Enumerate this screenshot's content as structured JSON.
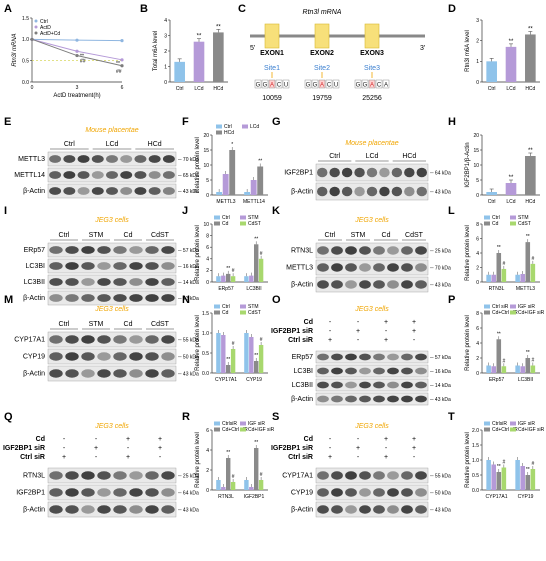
{
  "panels": {
    "A": {
      "letter": "A",
      "ylabel": "Rtn3l mRNA",
      "xlabel": "ActD treatment(h)",
      "legend": [
        "Ctrl",
        "ActD",
        "ActD+Cd"
      ],
      "x": [
        0,
        3,
        6
      ],
      "xticks": [
        "0",
        "3",
        "6"
      ],
      "yticks": [
        "0.0",
        "0.5",
        "1.0",
        "1.5"
      ],
      "ylim": [
        0,
        1.5
      ],
      "series": [
        {
          "name": "Ctrl",
          "values": [
            1.0,
            0.98,
            0.97
          ],
          "color": "#8fb6e0"
        },
        {
          "name": "ActD",
          "values": [
            1.0,
            0.72,
            0.52
          ],
          "color": "#b59ad8"
        },
        {
          "name": "ActD+Cd",
          "values": [
            1.0,
            0.62,
            0.38
          ],
          "color": "#7d7d7d"
        }
      ],
      "marks": [
        "**",
        "##",
        "**",
        "##"
      ]
    },
    "B": {
      "letter": "B",
      "ylabel": "Total m6A level",
      "categories": [
        "Ctrl",
        "LCd",
        "HCd"
      ],
      "values": [
        1.3,
        2.6,
        3.2
      ],
      "colors": [
        "#8fc3ea",
        "#b59ad8",
        "#8a8a8a"
      ],
      "yticks": [
        "0",
        "1",
        "2",
        "3",
        "4"
      ],
      "ylim": [
        0,
        4
      ],
      "marks": [
        "",
        "**",
        "**"
      ]
    },
    "C": {
      "letter": "C",
      "title": "Rtn3l mRNA",
      "five": "5'",
      "three": "3'",
      "exons": [
        "EXON1",
        "EXON2",
        "EXON3"
      ],
      "sites": [
        "Site1",
        "Site2",
        "Site3"
      ],
      "positions": [
        "10059",
        "19759",
        "25256"
      ],
      "seqs": [
        [
          "G",
          "G",
          "A",
          "C",
          "U"
        ],
        [
          "G",
          "G",
          "A",
          "C",
          "U"
        ],
        [
          "G",
          "G",
          "A",
          "C",
          "A"
        ]
      ]
    },
    "D": {
      "letter": "D",
      "ylabel": "Rtn3l m6A level",
      "categories": [
        "Ctrl",
        "LCd",
        "HCd"
      ],
      "values": [
        1.0,
        1.7,
        2.3
      ],
      "colors": [
        "#8fc3ea",
        "#b59ad8",
        "#8a8a8a"
      ],
      "yticks": [
        "0",
        "1",
        "2",
        "3"
      ],
      "ylim": [
        0,
        3
      ],
      "marks": [
        "",
        "**",
        "**"
      ]
    },
    "E": {
      "letter": "E",
      "subtitle": "Mouse placentae",
      "groups": [
        "Ctrl",
        "LCd",
        "HCd"
      ],
      "rows": [
        {
          "name": "METTL3",
          "kda": "70 kDa"
        },
        {
          "name": "METTL14",
          "kda": "65 kDa"
        },
        {
          "name": "β-Actin",
          "kda": "43 kDa"
        }
      ]
    },
    "F": {
      "letter": "F",
      "ylabel": "Relative protein level",
      "legend": [
        "Ctrl",
        "LCd",
        "HCd"
      ],
      "categories": [
        "METTL3",
        "METTL14"
      ],
      "series": [
        {
          "name": "Ctrl",
          "values": [
            1.0,
            1.0
          ],
          "color": "#8fc3ea"
        },
        {
          "name": "LCd",
          "values": [
            7.0,
            5.0
          ],
          "color": "#b59ad8"
        },
        {
          "name": "HCd",
          "values": [
            15.0,
            9.5
          ],
          "color": "#8a8a8a"
        }
      ],
      "yticks": [
        "0",
        "5",
        "10",
        "15",
        "20"
      ],
      "ylim": [
        0,
        20
      ],
      "marks": [
        "*",
        "**",
        "",
        "*"
      ]
    },
    "G": {
      "letter": "G",
      "subtitle": "Mouse placentae",
      "groups": [
        "Ctrl",
        "LCd",
        "HCd"
      ],
      "rows": [
        {
          "name": "IGF2BP1",
          "kda": "64 kDa"
        },
        {
          "name": "β-Actin",
          "kda": "43 kDa"
        }
      ]
    },
    "H": {
      "letter": "H",
      "ylabel": "IGF2BP1/β-Actin",
      "categories": [
        "Ctrl",
        "LCd",
        "HCd"
      ],
      "values": [
        1.0,
        4.0,
        13.0
      ],
      "colors": [
        "#8fc3ea",
        "#b59ad8",
        "#8a8a8a"
      ],
      "yticks": [
        "0",
        "5",
        "10",
        "15",
        "20"
      ],
      "ylim": [
        0,
        20
      ],
      "marks": [
        "",
        "**",
        "**"
      ]
    },
    "I": {
      "letter": "I",
      "subtitle": "JEG3 cells",
      "groups": [
        "Ctrl",
        "STM",
        "Cd",
        "CdST"
      ],
      "rows": [
        {
          "name": "ERp57",
          "kda": "57 kDa"
        },
        {
          "name": "LC3BI",
          "kda": "16 kDa"
        },
        {
          "name": "LC3BII",
          "kda": "14 kDa"
        },
        {
          "name": "β-Actin",
          "kda": "43 kDa"
        }
      ]
    },
    "J": {
      "letter": "J",
      "ylabel": "Relative protein level",
      "legend": [
        "Ctrl",
        "STM",
        "Cd",
        "CdST"
      ],
      "categories": [
        "ERp57",
        "LC3BII"
      ],
      "series": [
        {
          "name": "Ctrl",
          "values": [
            1.0,
            1.0
          ],
          "color": "#8fc3ea"
        },
        {
          "name": "STM",
          "values": [
            1.1,
            1.1
          ],
          "color": "#b59ad8"
        },
        {
          "name": "Cd",
          "values": [
            1.4,
            6.5
          ],
          "color": "#8a8a8a"
        },
        {
          "name": "CdST",
          "values": [
            1.0,
            4.0
          ],
          "color": "#a8d86e"
        }
      ],
      "yticks": [
        "0",
        "2",
        "4",
        "6",
        "8",
        "10"
      ],
      "ylim": [
        0,
        10
      ],
      "marks": [
        "**",
        "#",
        "**",
        "#"
      ]
    },
    "K": {
      "letter": "K",
      "subtitle": "JEG3 cells",
      "groups": [
        "Ctrl",
        "STM",
        "Cd",
        "CdST"
      ],
      "rows": [
        {
          "name": "RTN3L",
          "kda": "25 kDa"
        },
        {
          "name": "METTL3",
          "kda": "70 kDa"
        },
        {
          "name": "β-Actin",
          "kda": "43 kDa"
        }
      ]
    },
    "L": {
      "letter": "L",
      "ylabel": "Relative protein level",
      "legend": [
        "Ctrl",
        "STM",
        "Cd",
        "CdST"
      ],
      "categories": [
        "RTN3L",
        "METTL3"
      ],
      "series": [
        {
          "name": "Ctrl",
          "values": [
            1.0,
            1.0
          ],
          "color": "#8fc3ea"
        },
        {
          "name": "STM",
          "values": [
            1.0,
            1.1
          ],
          "color": "#b59ad8"
        },
        {
          "name": "Cd",
          "values": [
            4.0,
            5.5
          ],
          "color": "#8a8a8a"
        },
        {
          "name": "CdST",
          "values": [
            1.8,
            2.5
          ],
          "color": "#a8d86e"
        }
      ],
      "yticks": [
        "0",
        "2",
        "4",
        "6",
        "8"
      ],
      "ylim": [
        0,
        8
      ],
      "marks": [
        "**",
        "#",
        "**",
        "#"
      ]
    },
    "M": {
      "letter": "M",
      "subtitle": "JEG3 cells",
      "groups": [
        "Ctrl",
        "STM",
        "Cd",
        "CdST"
      ],
      "rows": [
        {
          "name": "CYP17A1",
          "kda": "55 kDa"
        },
        {
          "name": "CYP19",
          "kda": "50 kDa"
        },
        {
          "name": "β-Actin",
          "kda": "43 kDa"
        }
      ]
    },
    "N": {
      "letter": "N",
      "ylabel": "Relative protein level",
      "legend": [
        "Ctrl",
        "STM",
        "Cd",
        "CdST"
      ],
      "categories": [
        "CYP17A1",
        "CYP19"
      ],
      "series": [
        {
          "name": "Ctrl",
          "values": [
            1.0,
            1.0
          ],
          "color": "#8fc3ea"
        },
        {
          "name": "STM",
          "values": [
            0.95,
            0.9
          ],
          "color": "#b59ad8"
        },
        {
          "name": "Cd",
          "values": [
            0.2,
            0.3
          ],
          "color": "#8a8a8a"
        },
        {
          "name": "CdST",
          "values": [
            0.6,
            0.7
          ],
          "color": "#a8d86e"
        }
      ],
      "yticks": [
        "0.0",
        "0.5",
        "1.0",
        "1.5"
      ],
      "ylim": [
        0,
        1.5
      ],
      "marks": [
        "**",
        "#",
        "**",
        "#"
      ]
    },
    "O": {
      "letter": "O",
      "subtitle": "JEG3 cells",
      "treatments": [
        {
          "name": "Cd",
          "signs": [
            "-",
            "-",
            "+",
            "+"
          ]
        },
        {
          "name": "IGF2BP1 siR",
          "signs": [
            "-",
            "+",
            "-",
            "+"
          ]
        },
        {
          "name": "Ctrl siR",
          "signs": [
            "+",
            "-",
            "+",
            "-"
          ]
        }
      ],
      "rows": [
        {
          "name": "ERp57",
          "kda": "57 kDa"
        },
        {
          "name": "LC3BI",
          "kda": "16 kDa"
        },
        {
          "name": "LC3BII",
          "kda": "14 kDa"
        },
        {
          "name": "β-Actin",
          "kda": "43 kDa"
        }
      ]
    },
    "P": {
      "letter": "P",
      "ylabel": "Relative protein level",
      "legend": [
        "Ctrl siR",
        "IGF siR",
        "Cd+Ctrl siR",
        "Cd+IGF siR"
      ],
      "categories": [
        "ERp57",
        "LC3BII"
      ],
      "series": [
        {
          "name": "Ctrl siR",
          "values": [
            1.0,
            1.0
          ],
          "color": "#8fc3ea"
        },
        {
          "name": "IGF siR",
          "values": [
            0.9,
            0.9
          ],
          "color": "#b59ad8"
        },
        {
          "name": "Cd+Ctrl siR",
          "values": [
            4.5,
            2.0
          ],
          "color": "#8a8a8a"
        },
        {
          "name": "Cd+IGF siR",
          "values": [
            0.9,
            1.0
          ],
          "color": "#a8d86e"
        }
      ],
      "yticks": [
        "0",
        "2",
        "4",
        "6",
        "8"
      ],
      "ylim": [
        0,
        8
      ],
      "marks": [
        "**",
        "#",
        "**",
        "#"
      ]
    },
    "Q": {
      "letter": "Q",
      "subtitle": "JEG3 cells",
      "treatments": [
        {
          "name": "Cd",
          "signs": [
            "-",
            "-",
            "+",
            "+"
          ]
        },
        {
          "name": "IGF2BP1 siR",
          "signs": [
            "-",
            "+",
            "-",
            "+"
          ]
        },
        {
          "name": "Ctrl siR",
          "signs": [
            "+",
            "-",
            "+",
            "-"
          ]
        }
      ],
      "rows": [
        {
          "name": "RTN3L",
          "kda": "25 kDa"
        },
        {
          "name": "IGF2BP1",
          "kda": "64 kDa"
        },
        {
          "name": "β-Actin",
          "kda": "43 kDa"
        }
      ]
    },
    "R": {
      "letter": "R",
      "ylabel": "Relative protein level",
      "legend": [
        "CtrlsiR",
        "IGF siR",
        "Cd+Ctrl siR",
        "Cd+IGF siR"
      ],
      "categories": [
        "RTN3L",
        "IGF2BP1"
      ],
      "series": [
        {
          "name": "CtrlsiR",
          "values": [
            1.0,
            1.0
          ],
          "color": "#8fc3ea"
        },
        {
          "name": "IGF siR",
          "values": [
            0.3,
            0.3
          ],
          "color": "#b59ad8"
        },
        {
          "name": "Cd+Ctrl siR",
          "values": [
            3.2,
            4.2
          ],
          "color": "#8a8a8a"
        },
        {
          "name": "Cd+IGF siR",
          "values": [
            0.8,
            1.0
          ],
          "color": "#a8d86e"
        }
      ],
      "yticks": [
        "0",
        "2",
        "4",
        "6"
      ],
      "ylim": [
        0,
        6
      ],
      "marks": [
        "**",
        "#",
        "**",
        "#"
      ]
    },
    "S": {
      "letter": "S",
      "subtitle": "JEG3 cells",
      "treatments": [
        {
          "name": "Cd",
          "signs": [
            "-",
            "-",
            "+",
            "+"
          ]
        },
        {
          "name": "IGF2BP1 siR",
          "signs": [
            "-",
            "+",
            "-",
            "+"
          ]
        },
        {
          "name": "Ctrl siR",
          "signs": [
            "+",
            "-",
            "+",
            "-"
          ]
        }
      ],
      "rows": [
        {
          "name": "CYP17A1",
          "kda": "55 kDa"
        },
        {
          "name": "CYP19",
          "kda": "50 kDa"
        },
        {
          "name": "β-Actin",
          "kda": "43 kDa"
        }
      ]
    },
    "T": {
      "letter": "T",
      "ylabel": "Relative protein level",
      "legend": [
        "CtrlsiR",
        "IGF siR",
        "Cd+Ctrl siR",
        "Cd+IGF siR"
      ],
      "categories": [
        "CYP17A1",
        "CYP19"
      ],
      "series": [
        {
          "name": "CtrlsiR",
          "values": [
            1.0,
            1.0
          ],
          "color": "#8fc3ea"
        },
        {
          "name": "IGF siR",
          "values": [
            0.85,
            0.8
          ],
          "color": "#b59ad8"
        },
        {
          "name": "Cd+Ctrl siR",
          "values": [
            0.6,
            0.5
          ],
          "color": "#8a8a8a"
        },
        {
          "name": "Cd+IGF siR",
          "values": [
            0.75,
            0.7
          ],
          "color": "#a8d86e"
        }
      ],
      "yticks": [
        "0.0",
        "0.5",
        "1.0",
        "1.5",
        "2.0"
      ],
      "ylim": [
        0,
        2
      ],
      "marks": [
        "**",
        "#",
        "**",
        "#"
      ]
    }
  }
}
